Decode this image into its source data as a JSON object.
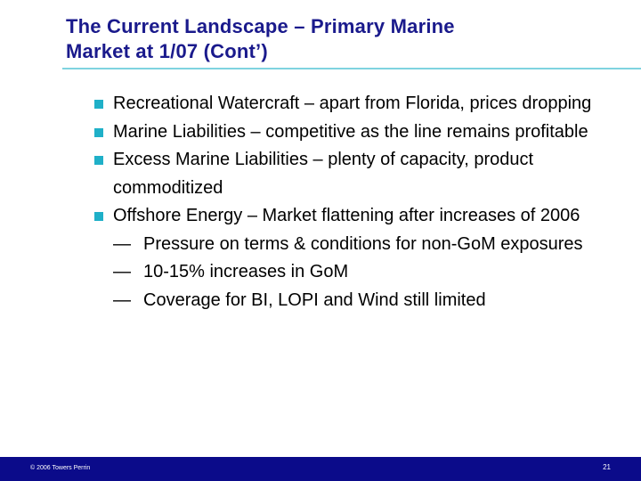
{
  "slide": {
    "title_line1": "The Current Landscape – Primary Marine",
    "title_line2": "Market at 1/07 (Cont’)",
    "bullets": [
      "Recreational Watercraft – apart from Florida, prices dropping",
      "Marine Liabilities – competitive as the line remains profitable",
      "Excess Marine Liabilities – plenty of capacity, product commoditized",
      "Offshore Energy – Market flattening after increases of 2006"
    ],
    "sub_dash": "—",
    "sub_bullets": [
      "Pressure on terms & conditions for non-GoM exposures",
      "10-15% increases in GoM",
      "Coverage for BI, LOPI and Wind still limited"
    ]
  },
  "footer": {
    "copyright": "© 2006 Towers Perrin",
    "page_number": "21"
  },
  "colors": {
    "title": "#1a1a8c",
    "rule": "#7fd3e0",
    "bullet": "#1fb0c8",
    "footer_bar": "#0b0b8a"
  }
}
